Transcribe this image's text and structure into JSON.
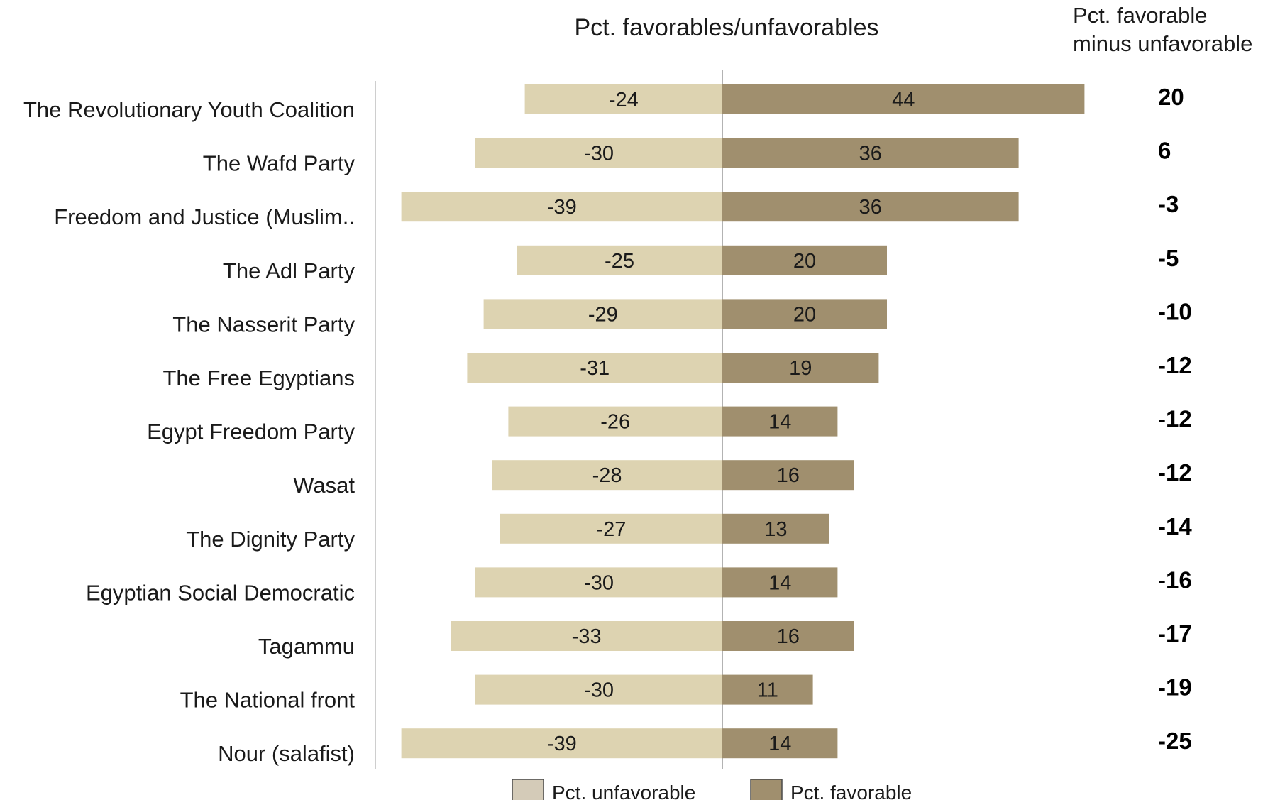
{
  "chart_data": {
    "type": "bar",
    "orientation": "horizontal-diverging",
    "title": "Pct. favorables/unfavorables",
    "net_header": [
      "Pct. favorable",
      "minus unfavorable"
    ],
    "categories": [
      "The Revolutionary Youth Coalition",
      "The Wafd Party",
      "Freedom and Justice (Muslim..",
      "The Adl Party",
      "The Nasserit Party",
      "The Free Egyptians",
      "Egypt Freedom Party",
      "Wasat",
      "The Dignity Party",
      "Egyptian Social Democratic",
      "Tagammu",
      "The National front",
      "Nour (salafist)"
    ],
    "series": [
      {
        "name": "Pct. unfavorable",
        "color": "#ddd3b1",
        "values": [
          -24,
          -30,
          -39,
          -25,
          -29,
          -31,
          -26,
          -28,
          -27,
          -30,
          -33,
          -30,
          -39
        ]
      },
      {
        "name": "Pct. favorable",
        "color": "#a08f6e",
        "values": [
          44,
          36,
          36,
          20,
          20,
          19,
          14,
          16,
          13,
          14,
          16,
          11,
          14
        ]
      }
    ],
    "net_values": [
      20,
      6,
      -3,
      -5,
      -10,
      -12,
      -12,
      -12,
      -14,
      -16,
      -17,
      -19,
      -25
    ],
    "legend": [
      "Pct. unfavorable",
      "Pct. favorable"
    ],
    "legend_position": "bottom",
    "grid": false
  }
}
